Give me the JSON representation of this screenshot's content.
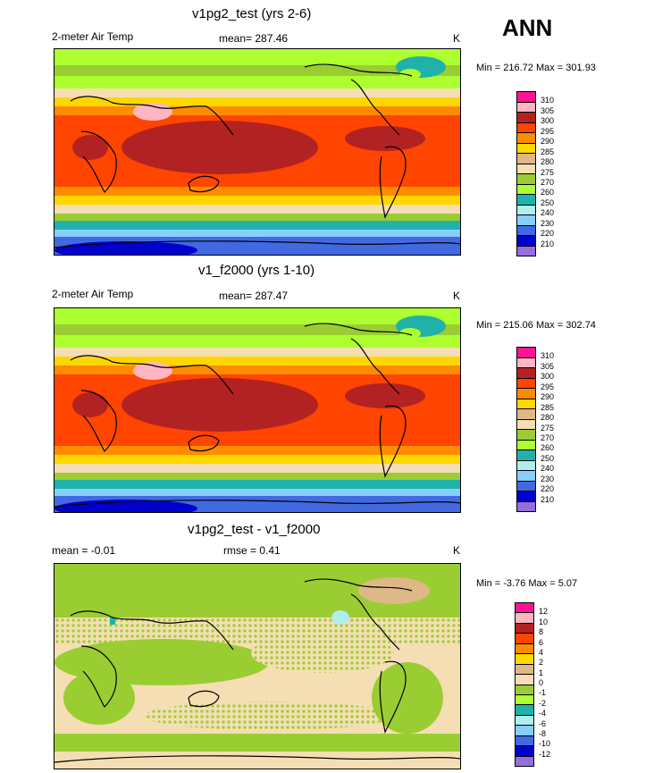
{
  "header": {
    "season": "ANN"
  },
  "panels": [
    {
      "title": "v1pg2_test (yrs 2-6)",
      "left_label": "2-meter Air Temp",
      "center_label": "mean= 287.46",
      "units": "K",
      "stats": "Min = 216.72 Max = 301.93",
      "kind": "abs",
      "colorbar": {
        "labels": [
          "310",
          "305",
          "300",
          "295",
          "290",
          "285",
          "280",
          "275",
          "270",
          "260",
          "250",
          "240",
          "230",
          "220",
          "210"
        ],
        "colors": [
          "#ff1493",
          "#ffb6c1",
          "#b22222",
          "#ff4500",
          "#ff8c00",
          "#ffd700",
          "#deb887",
          "#f5deb3",
          "#9acd32",
          "#adff2f",
          "#20b2aa",
          "#afeeee",
          "#87cefa",
          "#4169e1",
          "#0000cd",
          "#9370db"
        ]
      }
    },
    {
      "title": "v1_f2000 (yrs 1-10)",
      "left_label": "2-meter Air Temp",
      "center_label": "mean= 287.47",
      "units": "K",
      "stats": "Min = 215.06 Max = 302.74",
      "kind": "abs",
      "colorbar": {
        "labels": [
          "310",
          "305",
          "300",
          "295",
          "290",
          "285",
          "280",
          "275",
          "270",
          "260",
          "250",
          "240",
          "230",
          "220",
          "210"
        ],
        "colors": [
          "#ff1493",
          "#ffb6c1",
          "#b22222",
          "#ff4500",
          "#ff8c00",
          "#ffd700",
          "#deb887",
          "#f5deb3",
          "#9acd32",
          "#adff2f",
          "#20b2aa",
          "#afeeee",
          "#87cefa",
          "#4169e1",
          "#0000cd",
          "#9370db"
        ]
      }
    },
    {
      "title": "v1pg2_test - v1_f2000",
      "left_label": "mean =  -0.01",
      "center_label": "rmse =   0.41",
      "units": "K",
      "stats": "Min =  -3.76 Max =   5.07",
      "kind": "diff",
      "colorbar": {
        "labels": [
          "12",
          "10",
          "8",
          "6",
          "4",
          "2",
          "1",
          "0",
          "-1",
          "-2",
          "-4",
          "-6",
          "-8",
          "-10",
          "-12"
        ],
        "colors": [
          "#ff1493",
          "#ffb6c1",
          "#b22222",
          "#ff4500",
          "#ff8c00",
          "#ffd700",
          "#deb887",
          "#f5deb3",
          "#9acd32",
          "#adff2f",
          "#20b2aa",
          "#afeeee",
          "#87cefa",
          "#4169e1",
          "#0000cd",
          "#9370db"
        ]
      }
    }
  ]
}
